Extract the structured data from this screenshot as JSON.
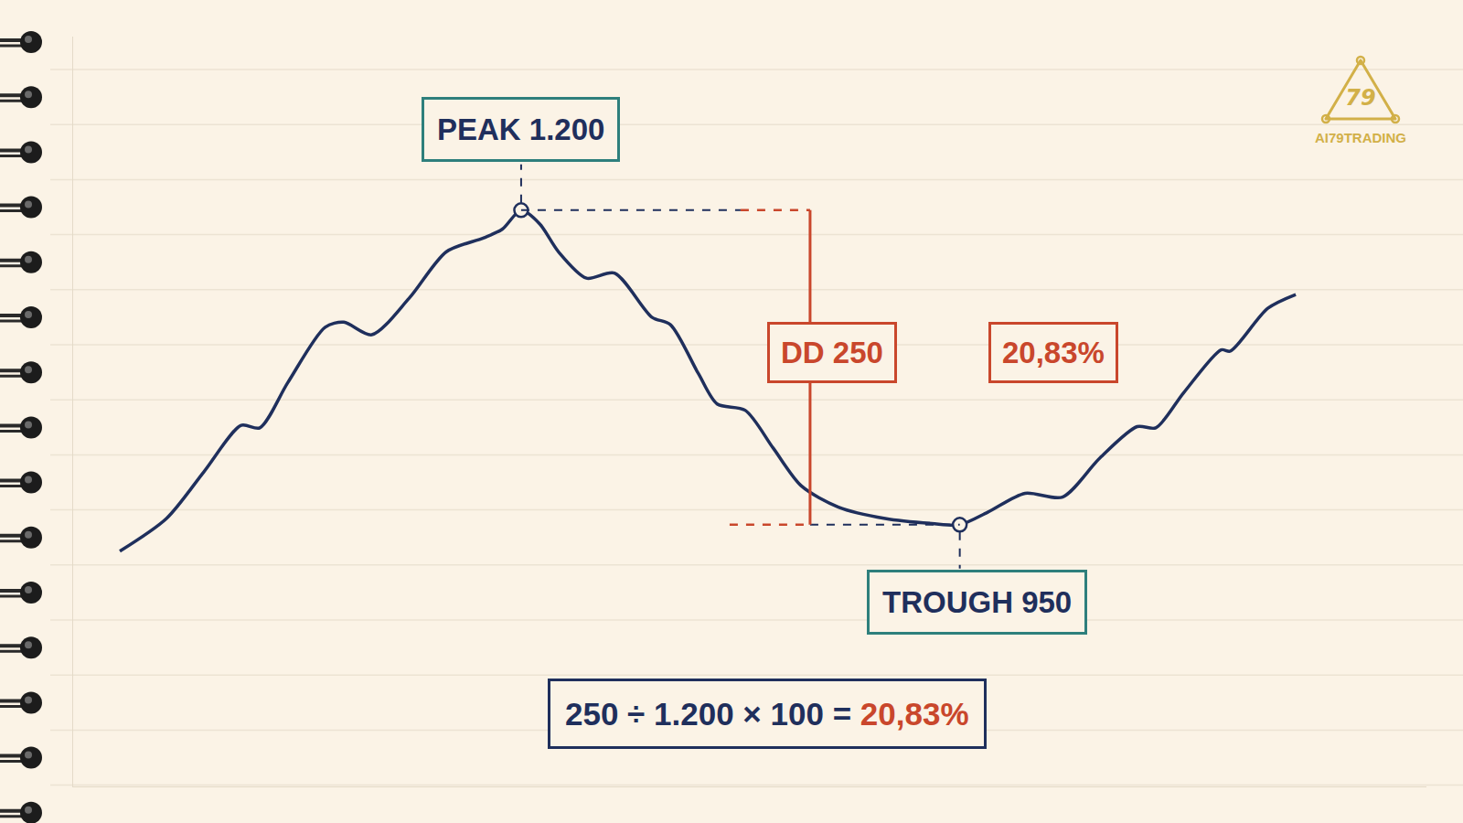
{
  "chart_data": {
    "type": "line",
    "color": "#1f2f5c",
    "marker": "circle",
    "x": [
      0,
      5,
      9,
      13,
      15,
      18,
      22,
      24,
      27,
      31,
      35,
      39,
      41,
      43,
      45,
      47,
      50,
      53,
      57,
      59,
      62,
      64,
      67,
      70,
      73,
      77,
      82,
      87,
      90,
      93,
      97,
      101,
      105,
      109,
      111,
      114,
      118,
      119,
      123,
      126
    ],
    "values": [
      929,
      955,
      992,
      1029,
      1027,
      1063,
      1107,
      1111,
      1101,
      1130,
      1167,
      1178,
      1185,
      1200,
      1189,
      1167,
      1146,
      1150,
      1115,
      1109,
      1070,
      1046,
      1041,
      1011,
      981,
      964,
      955,
      951,
      950,
      960,
      975,
      972,
      1003,
      1028,
      1027,
      1055,
      1089,
      1088,
      1122,
      1133
    ],
    "xlim": [
      -5,
      140
    ],
    "ylim": [
      742,
      1338
    ],
    "tick_labels": false,
    "grid": false,
    "peak": {
      "x": 43,
      "value": 1200,
      "label": "PEAK 1.200"
    },
    "trough": {
      "x": 90,
      "value": 950,
      "label": "TROUGH 950"
    },
    "drawdown": {
      "value": 250,
      "label": "DD 250"
    },
    "drawdown_pct": {
      "value": 20.83,
      "label": "20,83%"
    },
    "formula": {
      "text": "250 ÷ 1.200 × 100 =",
      "result": "20,83%"
    }
  },
  "brand": {
    "logo": "79",
    "name": "AI79TRADING"
  }
}
